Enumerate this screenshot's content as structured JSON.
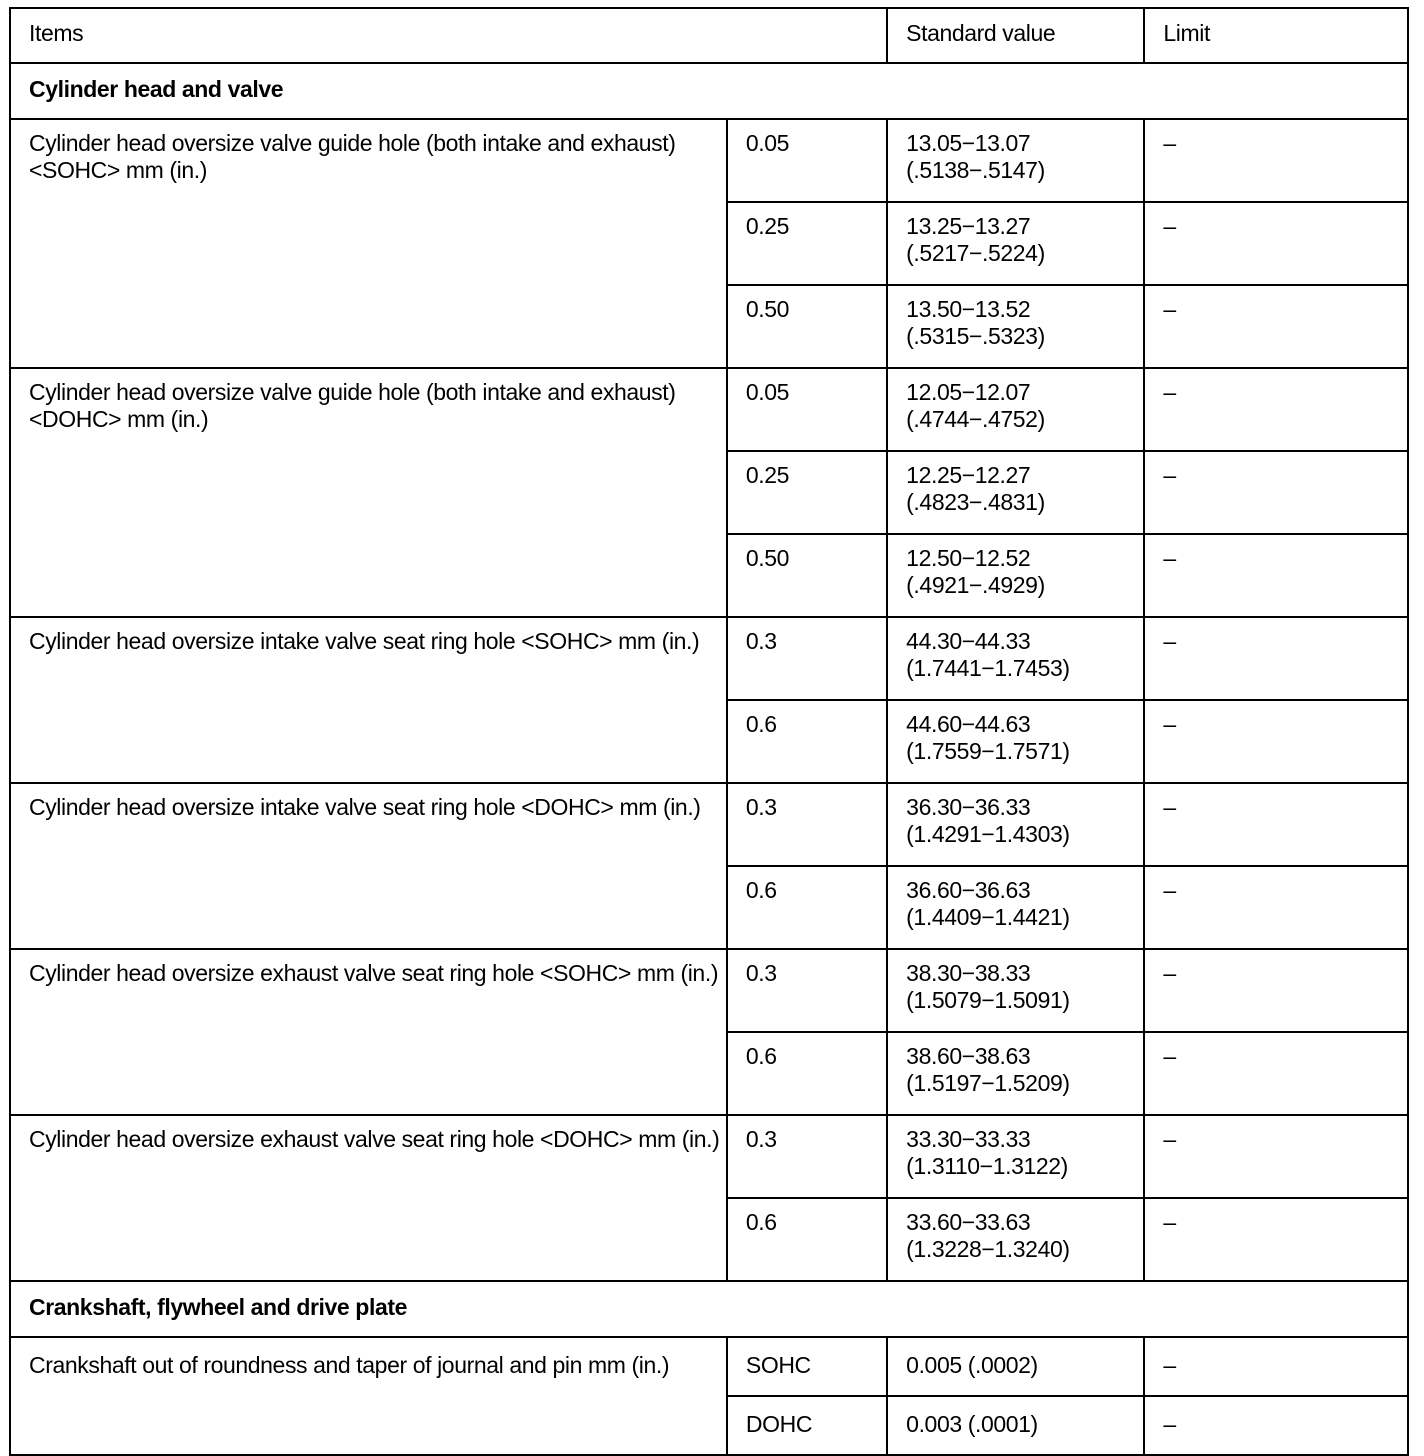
{
  "header": {
    "items": "Items",
    "standard": "Standard value",
    "limit": "Limit"
  },
  "sections": [
    {
      "title": "Cylinder head and valve",
      "groups": [
        {
          "item": "Cylinder head oversize valve guide hole  (both intake and exhaust) <SOHC> mm (in.)",
          "rows": [
            {
              "size": "0.05",
              "std_mm": "13.05−13.07",
              "std_in": "(.5138−.5147)",
              "limit": "–"
            },
            {
              "size": "0.25",
              "std_mm": "13.25−13.27",
              "std_in": "(.5217−.5224)",
              "limit": "–"
            },
            {
              "size": "0.50",
              "std_mm": "13.50−13.52",
              "std_in": "(.5315−.5323)",
              "limit": "–"
            }
          ]
        },
        {
          "item": "Cylinder head oversize valve guide hole  (both intake and exhaust) <DOHC> mm (in.)",
          "rows": [
            {
              "size": "0.05",
              "std_mm": "12.05−12.07",
              "std_in": "(.4744−.4752)",
              "limit": "–"
            },
            {
              "size": "0.25",
              "std_mm": "12.25−12.27",
              "std_in": "(.4823−.4831)",
              "limit": "–"
            },
            {
              "size": "0.50",
              "std_mm": "12.50−12.52",
              "std_in": "(.4921−.4929)",
              "limit": "–"
            }
          ]
        },
        {
          "item": "Cylinder head oversize intake valve seat ring hole <SOHC> mm (in.)",
          "rows": [
            {
              "size": "0.3",
              "std_mm": "44.30−44.33",
              "std_in": "(1.7441−1.7453)",
              "limit": "–"
            },
            {
              "size": "0.6",
              "std_mm": "44.60−44.63",
              "std_in": "(1.7559−1.7571)",
              "limit": "–"
            }
          ]
        },
        {
          "item": "Cylinder head oversize intake valve seat ring hole <DOHC> mm (in.)",
          "rows": [
            {
              "size": "0.3",
              "std_mm": "36.30−36.33",
              "std_in": "(1.4291−1.4303)",
              "limit": "–"
            },
            {
              "size": "0.6",
              "std_mm": "36.60−36.63",
              "std_in": "(1.4409−1.4421)",
              "limit": "–"
            }
          ]
        },
        {
          "item": "Cylinder head oversize exhaust valve seat ring hole <SOHC> mm (in.)",
          "rows": [
            {
              "size": "0.3",
              "std_mm": "38.30−38.33",
              "std_in": "(1.5079−1.5091)",
              "limit": "–"
            },
            {
              "size": "0.6",
              "std_mm": "38.60−38.63",
              "std_in": "(1.5197−1.5209)",
              "limit": "–"
            }
          ]
        },
        {
          "item": "Cylinder head oversize exhaust valve seat ring hole <DOHC> mm (in.)",
          "rows": [
            {
              "size": "0.3",
              "std_mm": "33.30−33.33",
              "std_in": "(1.3110−1.3122)",
              "limit": "–"
            },
            {
              "size": "0.6",
              "std_mm": "33.60−33.63",
              "std_in": "(1.3228−1.3240)",
              "limit": "–"
            }
          ]
        }
      ]
    },
    {
      "title": "Crankshaft, flywheel and drive plate",
      "groups": [
        {
          "item": "Crankshaft out of roundness and taper of journal and pin mm (in.)",
          "short": true,
          "rows": [
            {
              "size": "SOHC",
              "std_mm": "0.005 (.0002)",
              "limit": "–"
            },
            {
              "size": "DOHC",
              "std_mm": "0.003 (.0001)",
              "limit": "–"
            }
          ]
        }
      ]
    }
  ]
}
